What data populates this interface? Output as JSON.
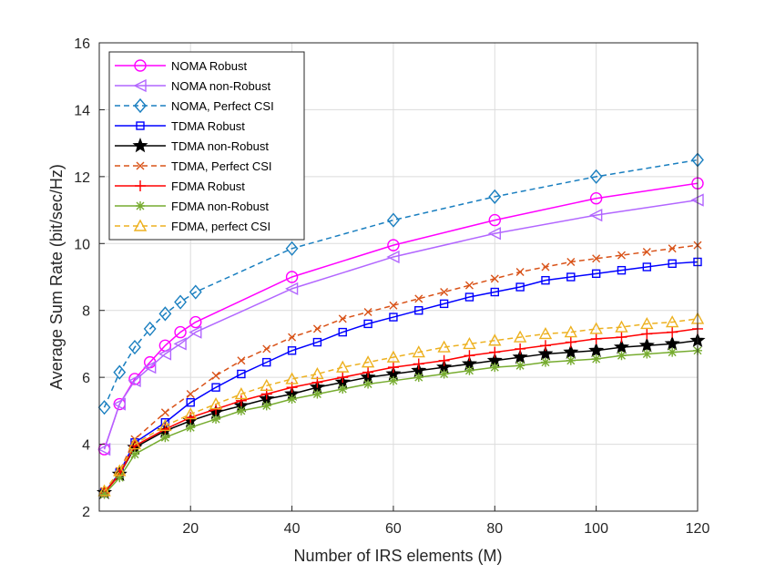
{
  "chart_data": {
    "type": "line",
    "title": "",
    "xlabel": "Number of IRS elements (M)",
    "ylabel": "Average Sum Rate (bit/sec/Hz)",
    "xlim": [
      2,
      120
    ],
    "ylim": [
      2,
      16
    ],
    "xticks": [
      20,
      40,
      60,
      80,
      100,
      120
    ],
    "yticks": [
      2,
      4,
      6,
      8,
      10,
      12,
      14,
      16
    ],
    "grid": true,
    "legend_position": "top-left",
    "series": [
      {
        "name": "NOMA Robust",
        "color": "#ff00ff",
        "dash": "solid",
        "marker": "circle",
        "x": [
          3,
          6,
          9,
          12,
          15,
          18,
          21,
          40,
          60,
          80,
          100,
          120
        ],
        "y": [
          3.85,
          5.2,
          5.95,
          6.45,
          6.95,
          7.35,
          7.65,
          9.0,
          9.95,
          10.7,
          11.35,
          11.8
        ]
      },
      {
        "name": "NOMA non-Robust",
        "color": "#b266ff",
        "dash": "solid",
        "marker": "triangle-left",
        "x": [
          3,
          6,
          9,
          12,
          15,
          18,
          21,
          40,
          60,
          80,
          100,
          120
        ],
        "y": [
          3.85,
          5.2,
          5.9,
          6.3,
          6.7,
          7.0,
          7.35,
          8.65,
          9.6,
          10.3,
          10.85,
          11.3
        ]
      },
      {
        "name": "NOMA, Perfect CSI",
        "color": "#1a7fc0",
        "dash": "dashed",
        "marker": "diamond",
        "x": [
          3,
          6,
          9,
          12,
          15,
          18,
          21,
          40,
          60,
          80,
          100,
          120
        ],
        "y": [
          5.1,
          6.15,
          6.9,
          7.45,
          7.9,
          8.25,
          8.55,
          9.85,
          10.7,
          11.4,
          12.0,
          12.5
        ]
      },
      {
        "name": "TDMA Robust",
        "color": "#0000ff",
        "dash": "solid",
        "marker": "square",
        "x": [
          3,
          6,
          9,
          15,
          20,
          25,
          30,
          35,
          40,
          45,
          50,
          55,
          60,
          65,
          70,
          75,
          80,
          85,
          90,
          95,
          100,
          105,
          110,
          115,
          120
        ],
        "y": [
          2.55,
          3.15,
          4.05,
          4.65,
          5.25,
          5.7,
          6.1,
          6.45,
          6.8,
          7.05,
          7.35,
          7.6,
          7.8,
          8.0,
          8.2,
          8.4,
          8.55,
          8.7,
          8.9,
          9.0,
          9.1,
          9.2,
          9.3,
          9.4,
          9.45
        ]
      },
      {
        "name": "TDMA non-Robust",
        "color": "#000000",
        "dash": "solid",
        "marker": "star",
        "x": [
          3,
          6,
          9,
          15,
          20,
          25,
          30,
          35,
          40,
          45,
          50,
          55,
          60,
          65,
          70,
          75,
          80,
          85,
          90,
          95,
          100,
          105,
          110,
          115,
          120
        ],
        "y": [
          2.55,
          3.1,
          3.9,
          4.4,
          4.7,
          4.95,
          5.15,
          5.35,
          5.5,
          5.7,
          5.85,
          6.0,
          6.1,
          6.2,
          6.3,
          6.4,
          6.5,
          6.6,
          6.7,
          6.75,
          6.8,
          6.9,
          6.95,
          7.0,
          7.1
        ]
      },
      {
        "name": "TDMA, Perfect CSI",
        "color": "#d95319",
        "dash": "dashed",
        "marker": "x",
        "x": [
          3,
          6,
          9,
          15,
          20,
          25,
          30,
          35,
          40,
          45,
          50,
          55,
          60,
          65,
          70,
          75,
          80,
          85,
          90,
          95,
          100,
          105,
          110,
          115,
          120
        ],
        "y": [
          2.6,
          3.2,
          4.15,
          4.95,
          5.5,
          6.05,
          6.5,
          6.85,
          7.2,
          7.45,
          7.75,
          7.95,
          8.15,
          8.35,
          8.55,
          8.75,
          8.95,
          9.15,
          9.3,
          9.45,
          9.55,
          9.65,
          9.75,
          9.85,
          9.95
        ]
      },
      {
        "name": "FDMA Robust",
        "color": "#ff0000",
        "dash": "solid",
        "marker": "plus",
        "x": [
          3,
          6,
          9,
          15,
          20,
          25,
          30,
          35,
          40,
          45,
          50,
          55,
          60,
          65,
          70,
          75,
          80,
          85,
          90,
          95,
          100,
          105,
          110,
          115,
          120
        ],
        "y": [
          2.55,
          3.1,
          3.95,
          4.45,
          4.8,
          5.05,
          5.3,
          5.5,
          5.7,
          5.85,
          6.0,
          6.15,
          6.3,
          6.4,
          6.5,
          6.65,
          6.75,
          6.85,
          6.95,
          7.05,
          7.15,
          7.2,
          7.3,
          7.35,
          7.45
        ]
      },
      {
        "name": "FDMA non-Robust",
        "color": "#77ac30",
        "dash": "solid",
        "marker": "asterisk",
        "x": [
          3,
          6,
          9,
          15,
          20,
          25,
          30,
          35,
          40,
          45,
          50,
          55,
          60,
          65,
          70,
          75,
          80,
          85,
          90,
          95,
          100,
          105,
          110,
          115,
          120
        ],
        "y": [
          2.5,
          3.0,
          3.7,
          4.2,
          4.5,
          4.75,
          5.0,
          5.15,
          5.35,
          5.5,
          5.65,
          5.8,
          5.9,
          6.0,
          6.1,
          6.2,
          6.3,
          6.35,
          6.45,
          6.5,
          6.55,
          6.65,
          6.7,
          6.75,
          6.8
        ]
      },
      {
        "name": "FDMA, perfect CSI",
        "color": "#edb120",
        "dash": "dashed",
        "marker": "triangle-up",
        "x": [
          3,
          6,
          9,
          15,
          20,
          25,
          30,
          35,
          40,
          45,
          50,
          55,
          60,
          65,
          70,
          75,
          80,
          85,
          90,
          95,
          100,
          105,
          110,
          115,
          120
        ],
        "y": [
          2.6,
          3.2,
          4.0,
          4.55,
          4.9,
          5.2,
          5.5,
          5.75,
          5.95,
          6.1,
          6.3,
          6.45,
          6.6,
          6.75,
          6.9,
          7.0,
          7.1,
          7.2,
          7.3,
          7.35,
          7.45,
          7.5,
          7.6,
          7.65,
          7.75
        ]
      }
    ]
  }
}
